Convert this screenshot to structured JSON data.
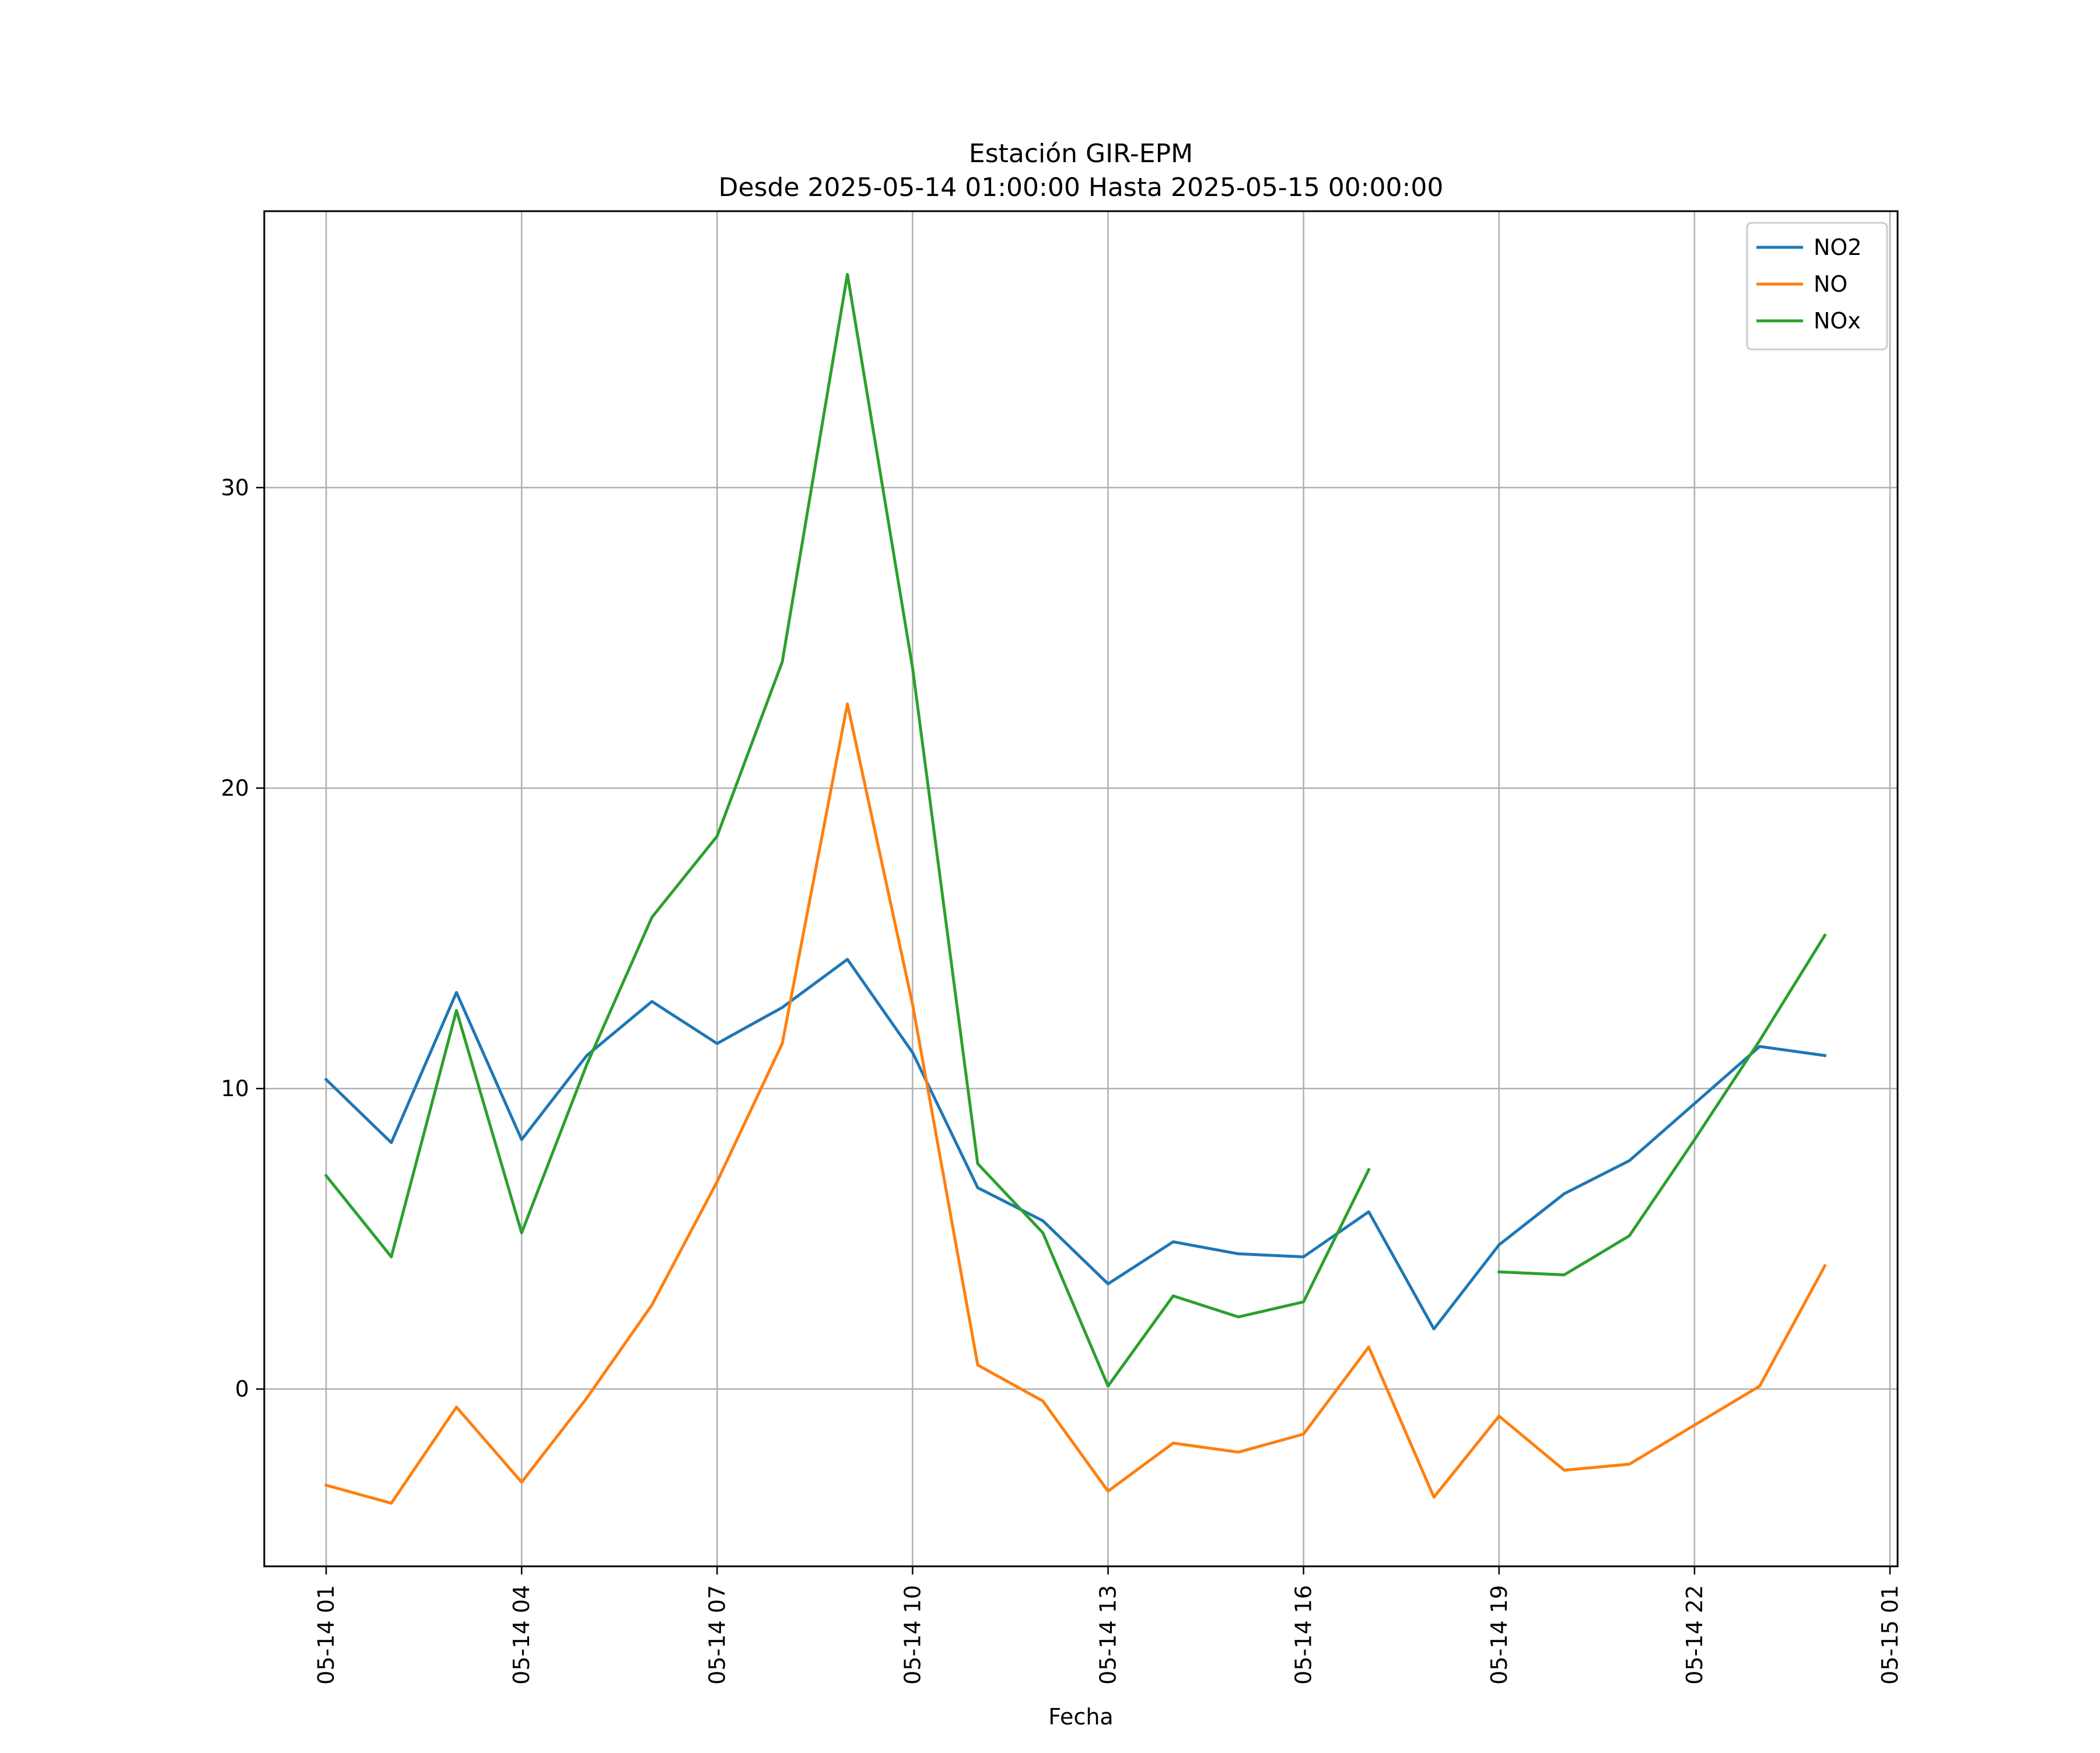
{
  "chart_data": {
    "type": "line",
    "title": "Estación GIR-EPM",
    "subtitle": "Desde 2025-05-14 01:00:00 Hasta 2025-05-15 00:00:00",
    "xlabel": "Fecha",
    "ylabel": "",
    "x": [
      "2025-05-14 01:00",
      "2025-05-14 02:00",
      "2025-05-14 03:00",
      "2025-05-14 04:00",
      "2025-05-14 05:00",
      "2025-05-14 06:00",
      "2025-05-14 07:00",
      "2025-05-14 08:00",
      "2025-05-14 09:00",
      "2025-05-14 10:00",
      "2025-05-14 11:00",
      "2025-05-14 12:00",
      "2025-05-14 13:00",
      "2025-05-14 14:00",
      "2025-05-14 15:00",
      "2025-05-14 16:00",
      "2025-05-14 17:00",
      "2025-05-14 18:00",
      "2025-05-14 19:00",
      "2025-05-14 20:00",
      "2025-05-14 21:00",
      "2025-05-14 22:00",
      "2025-05-14 23:00",
      "2025-05-15 00:00"
    ],
    "xlim": [
      "2025-05-14 00:03",
      "2025-05-15 01:07"
    ],
    "ylim": [
      -5.9,
      39.2
    ],
    "x_ticks": [
      "05-14 01",
      "05-14 04",
      "05-14 07",
      "05-14 10",
      "05-14 13",
      "05-14 16",
      "05-14 19",
      "05-14 22",
      "05-15 01"
    ],
    "x_tick_times": [
      "2025-05-14 01:00",
      "2025-05-14 04:00",
      "2025-05-14 07:00",
      "2025-05-14 10:00",
      "2025-05-14 13:00",
      "2025-05-14 16:00",
      "2025-05-14 19:00",
      "2025-05-14 22:00",
      "2025-05-15 01:00"
    ],
    "y_ticks": [
      0,
      10,
      20,
      30
    ],
    "grid": true,
    "legend_position": "top-right",
    "series": [
      {
        "name": "NO2",
        "color": "#1f77b4",
        "values": [
          10.3,
          8.2,
          13.2,
          8.3,
          11.1,
          12.9,
          11.5,
          12.7,
          14.3,
          11.2,
          6.7,
          5.6,
          3.5,
          4.9,
          4.5,
          4.4,
          5.9,
          2.0,
          4.8,
          6.5,
          7.6,
          9.5,
          11.4,
          11.1
        ]
      },
      {
        "name": "NO",
        "color": "#ff7f0e",
        "values": [
          -3.2,
          -3.8,
          -0.6,
          -3.1,
          -0.3,
          2.8,
          6.9,
          11.5,
          22.8,
          12.8,
          0.8,
          -0.4,
          -3.4,
          -1.8,
          -2.1,
          -1.5,
          1.4,
          -3.6,
          -0.9,
          -2.7,
          -2.5,
          -1.2,
          0.1,
          4.1
        ]
      },
      {
        "name": "NOx",
        "color": "#2ca02c",
        "values": [
          7.1,
          4.4,
          12.6,
          5.2,
          10.8,
          15.7,
          18.4,
          24.2,
          37.1,
          24.0,
          7.5,
          5.2,
          0.1,
          3.1,
          2.4,
          2.9,
          7.3,
          null,
          3.9,
          3.8,
          5.1,
          8.3,
          11.6,
          15.1
        ]
      }
    ]
  }
}
